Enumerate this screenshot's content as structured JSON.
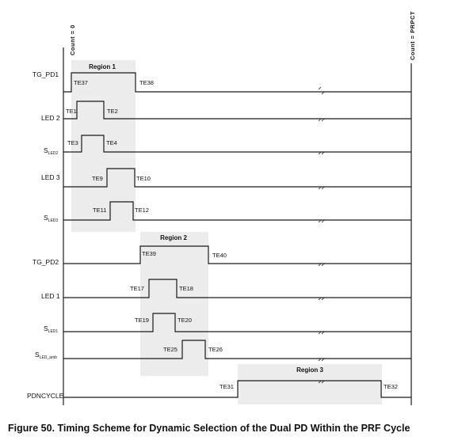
{
  "count_start_label": "Count = 0",
  "count_end_label": "Count = PRPCT",
  "regions": {
    "r1": "Region 1",
    "r2": "Region 2",
    "r3": "Region 3"
  },
  "signals": {
    "tg_pd1": "TG_PD1",
    "led2": "LED 2",
    "s_led2": {
      "main": "S",
      "sub": "LED2"
    },
    "led3": "LED 3",
    "s_led3": {
      "main": "S",
      "sub": "LED3"
    },
    "tg_pd2": "TG_PD2",
    "led1": "LED 1",
    "s_led1": {
      "main": "S",
      "sub": "LED1"
    },
    "s_led_amb": {
      "main": "S",
      "sub": "LED_amb"
    },
    "pdncycle": "PDNCYCLE"
  },
  "timing_events": {
    "te37": "TE37",
    "te38": "TE38",
    "te1": "TE1",
    "te2": "TE2",
    "te3": "TE3",
    "te4": "TE4",
    "te9": "TE9",
    "te10": "TE10",
    "te11": "TE11",
    "te12": "TE12",
    "te39": "TE39",
    "te40": "TE40",
    "te17": "TE17",
    "te18": "TE18",
    "te19": "TE19",
    "te20": "TE20",
    "te25": "TE25",
    "te26": "TE26",
    "te31": "TE31",
    "te32": "TE32"
  },
  "caption": "Figure 50.  Timing Scheme for Dynamic Selection of the Dual PD Within the PRF Cycle"
}
